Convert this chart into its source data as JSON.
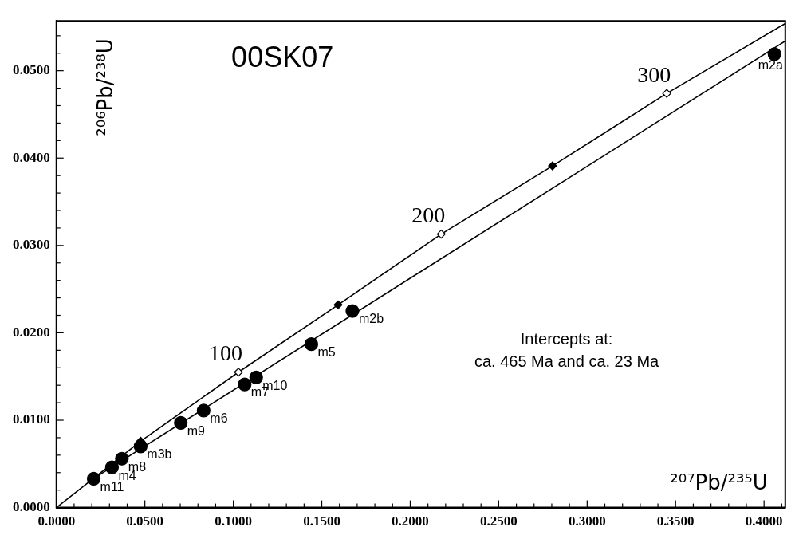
{
  "chart_data": {
    "type": "scatter",
    "title": "00SK07",
    "xlabel": "²⁰⁷Pb/²³⁵U",
    "ylabel": "²⁰⁶Pb/²³⁸U",
    "xlim": [
      0,
      0.412
    ],
    "ylim": [
      0,
      0.0557
    ],
    "xticks": [
      {
        "value": 0,
        "label": "0.0000"
      },
      {
        "value": 0.01,
        "label": null
      },
      {
        "value": 0.02,
        "label": null
      },
      {
        "value": 0.03,
        "label": null
      },
      {
        "value": 0.04,
        "label": null
      },
      {
        "value": 0.05,
        "label": "0.0500"
      },
      {
        "value": 0.06,
        "label": null
      },
      {
        "value": 0.07,
        "label": null
      },
      {
        "value": 0.08,
        "label": null
      },
      {
        "value": 0.09,
        "label": null
      },
      {
        "value": 0.1,
        "label": "0.1000"
      },
      {
        "value": 0.11,
        "label": null
      },
      {
        "value": 0.12,
        "label": null
      },
      {
        "value": 0.13,
        "label": null
      },
      {
        "value": 0.14,
        "label": null
      },
      {
        "value": 0.15,
        "label": "0.1500"
      },
      {
        "value": 0.16,
        "label": null
      },
      {
        "value": 0.17,
        "label": null
      },
      {
        "value": 0.18,
        "label": null
      },
      {
        "value": 0.19,
        "label": null
      },
      {
        "value": 0.2,
        "label": "0.2000"
      },
      {
        "value": 0.21,
        "label": null
      },
      {
        "value": 0.22,
        "label": null
      },
      {
        "value": 0.23,
        "label": null
      },
      {
        "value": 0.24,
        "label": null
      },
      {
        "value": 0.25,
        "label": "0.2500"
      },
      {
        "value": 0.26,
        "label": null
      },
      {
        "value": 0.27,
        "label": null
      },
      {
        "value": 0.28,
        "label": null
      },
      {
        "value": 0.29,
        "label": null
      },
      {
        "value": 0.3,
        "label": "0.3000"
      },
      {
        "value": 0.31,
        "label": null
      },
      {
        "value": 0.32,
        "label": null
      },
      {
        "value": 0.33,
        "label": null
      },
      {
        "value": 0.34,
        "label": null
      },
      {
        "value": 0.35,
        "label": "0.3500"
      },
      {
        "value": 0.36,
        "label": null
      },
      {
        "value": 0.37,
        "label": null
      },
      {
        "value": 0.38,
        "label": null
      },
      {
        "value": 0.39,
        "label": null
      },
      {
        "value": 0.4,
        "label": "0.4000"
      },
      {
        "value": 0.41,
        "label": null
      }
    ],
    "yticks": [
      {
        "value": 0,
        "label": "0.0000"
      },
      {
        "value": 0.002,
        "label": null
      },
      {
        "value": 0.004,
        "label": null
      },
      {
        "value": 0.006,
        "label": null
      },
      {
        "value": 0.008,
        "label": null
      },
      {
        "value": 0.01,
        "label": "0.0100"
      },
      {
        "value": 0.012,
        "label": null
      },
      {
        "value": 0.014,
        "label": null
      },
      {
        "value": 0.016,
        "label": null
      },
      {
        "value": 0.018,
        "label": null
      },
      {
        "value": 0.02,
        "label": "0.0200"
      },
      {
        "value": 0.022,
        "label": null
      },
      {
        "value": 0.024,
        "label": null
      },
      {
        "value": 0.026,
        "label": null
      },
      {
        "value": 0.028,
        "label": null
      },
      {
        "value": 0.03,
        "label": "0.0300"
      },
      {
        "value": 0.032,
        "label": null
      },
      {
        "value": 0.034,
        "label": null
      },
      {
        "value": 0.036,
        "label": null
      },
      {
        "value": 0.038,
        "label": null
      },
      {
        "value": 0.04,
        "label": "0.0400"
      },
      {
        "value": 0.042,
        "label": null
      },
      {
        "value": 0.044,
        "label": null
      },
      {
        "value": 0.046,
        "label": null
      },
      {
        "value": 0.048,
        "label": null
      },
      {
        "value": 0.05,
        "label": "0.0500"
      },
      {
        "value": 0.052,
        "label": null
      },
      {
        "value": 0.054,
        "label": null
      }
    ],
    "grid": false,
    "legend": false,
    "series": [
      {
        "type": "line",
        "color": "#000000",
        "marker": "none",
        "x": [
          0,
          0.0476,
          0.1029,
          0.1592,
          0.2175,
          0.2804,
          0.345,
          0.412
        ],
        "values": [
          0,
          0.0076,
          0.0155,
          0.0232,
          0.0313,
          0.0391,
          0.0474,
          0.0554
        ]
      },
      {
        "type": "line",
        "color": "#000000",
        "marker": "none",
        "x": [
          0.0232,
          0.412
        ],
        "values": [
          0.0036,
          0.0534
        ]
      },
      {
        "type": "scatter",
        "color": "#000000",
        "marker": "diamond",
        "x": [
          0.0476,
          0.1592,
          0.2804
        ],
        "values": [
          0.0076,
          0.0232,
          0.0391
        ]
      },
      {
        "type": "scatter",
        "color": "#ffffff",
        "marker": "diamond",
        "x": [
          0.1029,
          0.2175,
          0.345
        ],
        "values": [
          0.0155,
          0.0313,
          0.0474
        ]
      },
      {
        "type": "scatter",
        "color": "#000000",
        "marker": "circle",
        "x": [
          0.0211,
          0.0314,
          0.037,
          0.0476,
          0.0703,
          0.0832,
          0.1064,
          0.1129,
          0.1441,
          0.1673,
          0.4059
        ],
        "values": [
          0.0033,
          0.0046,
          0.0056,
          0.007,
          0.0097,
          0.0111,
          0.0141,
          0.0149,
          0.0187,
          0.0225,
          0.0519
        ]
      }
    ],
    "annotations": [
      "Intercepts at:",
      "ca. 465 Ma and ca. 23 Ma",
      {
        "text": "100",
        "x": 0.1029,
        "y": 0.0155
      },
      {
        "text": "200",
        "x": 0.2175,
        "y": 0.0313
      },
      {
        "text": "300",
        "x": 0.345,
        "y": 0.0474
      },
      {
        "text": "m11",
        "x": 0.0211,
        "y": 0.0033
      },
      {
        "text": "m4",
        "x": 0.0314,
        "y": 0.0046
      },
      {
        "text": "m8",
        "x": 0.037,
        "y": 0.0056
      },
      {
        "text": "m3b",
        "x": 0.0476,
        "y": 0.007
      },
      {
        "text": "m9",
        "x": 0.0703,
        "y": 0.0097
      },
      {
        "text": "m6",
        "x": 0.0832,
        "y": 0.0111
      },
      {
        "text": "m7",
        "x": 0.1064,
        "y": 0.0141
      },
      {
        "text": "m10",
        "x": 0.1129,
        "y": 0.0149
      },
      {
        "text": "m5",
        "x": 0.1441,
        "y": 0.0187
      },
      {
        "text": "m2b",
        "x": 0.1673,
        "y": 0.0225
      },
      {
        "text": "m2a",
        "x": 0.4059,
        "y": 0.0519
      }
    ]
  }
}
